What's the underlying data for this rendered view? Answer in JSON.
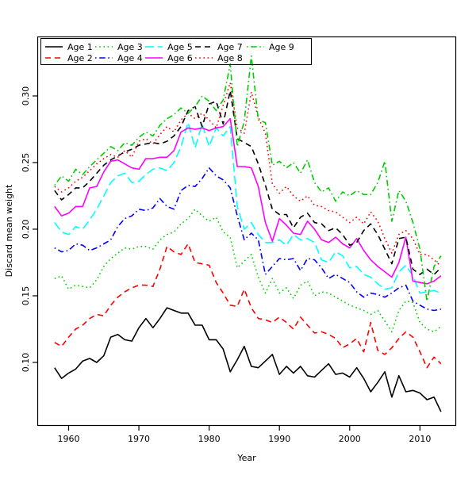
{
  "figure": {
    "background": "#ffffff",
    "border_color": "#000000"
  },
  "chart_data": {
    "type": "line",
    "title": "",
    "xlabel": "Year",
    "ylabel": "Discard mean weight",
    "x_start": 1958,
    "x_end": 2013,
    "x_ticks": [
      1960,
      1970,
      1980,
      1990,
      2000,
      2010
    ],
    "y_ticks": [
      0.1,
      0.15,
      0.2,
      0.25,
      0.3
    ],
    "y_tick_labels": [
      "0.10",
      "0.15",
      "0.20",
      "0.25",
      "0.30"
    ],
    "ylim": [
      0.052,
      0.345
    ],
    "grid": false,
    "legend_position": "top-left",
    "legend_columns": 5,
    "series": [
      {
        "name": "Age 1",
        "color": "#000000",
        "line_style": "solid",
        "values": [
          0.096,
          0.088,
          0.092,
          0.095,
          0.101,
          0.103,
          0.1,
          0.105,
          0.119,
          0.121,
          0.117,
          0.116,
          0.126,
          0.133,
          0.126,
          0.133,
          0.141,
          0.139,
          0.137,
          0.137,
          0.128,
          0.128,
          0.117,
          0.117,
          0.11,
          0.093,
          0.102,
          0.112,
          0.097,
          0.096,
          0.101,
          0.106,
          0.091,
          0.097,
          0.092,
          0.097,
          0.09,
          0.089,
          0.094,
          0.099,
          0.091,
          0.092,
          0.089,
          0.096,
          0.088,
          0.078,
          0.085,
          0.093,
          0.074,
          0.09,
          0.078,
          0.079,
          0.077,
          0.072,
          0.074,
          0.063
        ]
      },
      {
        "name": "Age 2",
        "color": "#FF0000",
        "line_style": "dashed",
        "values": [
          0.115,
          0.112,
          0.119,
          0.125,
          0.128,
          0.133,
          0.136,
          0.135,
          0.143,
          0.149,
          0.153,
          0.156,
          0.158,
          0.158,
          0.157,
          0.17,
          0.187,
          0.183,
          0.181,
          0.189,
          0.175,
          0.174,
          0.173,
          0.16,
          0.152,
          0.143,
          0.142,
          0.155,
          0.141,
          0.133,
          0.132,
          0.13,
          0.134,
          0.13,
          0.125,
          0.134,
          0.128,
          0.122,
          0.123,
          0.121,
          0.118,
          0.111,
          0.114,
          0.118,
          0.108,
          0.13,
          0.109,
          0.106,
          0.111,
          0.118,
          0.123,
          0.119,
          0.108,
          0.096,
          0.104,
          0.099
        ]
      },
      {
        "name": "Age 3",
        "color": "#00CD00",
        "line_style": "dotted",
        "values": [
          0.163,
          0.165,
          0.155,
          0.158,
          0.157,
          0.156,
          0.162,
          0.172,
          0.178,
          0.182,
          0.186,
          0.185,
          0.187,
          0.187,
          0.185,
          0.192,
          0.196,
          0.198,
          0.204,
          0.208,
          0.215,
          0.21,
          0.206,
          0.209,
          0.198,
          0.194,
          0.171,
          0.176,
          0.181,
          0.164,
          0.152,
          0.163,
          0.152,
          0.156,
          0.148,
          0.158,
          0.161,
          0.15,
          0.153,
          0.152,
          0.149,
          0.146,
          0.143,
          0.141,
          0.139,
          0.136,
          0.139,
          0.131,
          0.123,
          0.139,
          0.146,
          0.145,
          0.13,
          0.125,
          0.123,
          0.127
        ]
      },
      {
        "name": "Age 4",
        "color": "#0000FF",
        "line_style": "dotdash",
        "values": [
          0.186,
          0.183,
          0.184,
          0.189,
          0.188,
          0.184,
          0.186,
          0.189,
          0.192,
          0.202,
          0.208,
          0.21,
          0.215,
          0.214,
          0.216,
          0.223,
          0.217,
          0.215,
          0.229,
          0.233,
          0.232,
          0.238,
          0.246,
          0.24,
          0.237,
          0.231,
          0.21,
          0.192,
          0.197,
          0.192,
          0.166,
          0.172,
          0.178,
          0.177,
          0.178,
          0.169,
          0.178,
          0.177,
          0.171,
          0.163,
          0.166,
          0.163,
          0.16,
          0.153,
          0.149,
          0.152,
          0.151,
          0.149,
          0.152,
          0.156,
          0.158,
          0.146,
          0.143,
          0.14,
          0.139,
          0.14
        ]
      },
      {
        "name": "Age 5",
        "color": "#00FFFF",
        "line_style": "longdash",
        "values": [
          0.205,
          0.198,
          0.196,
          0.202,
          0.2,
          0.207,
          0.215,
          0.225,
          0.235,
          0.24,
          0.242,
          0.235,
          0.236,
          0.241,
          0.245,
          0.246,
          0.244,
          0.25,
          0.262,
          0.28,
          0.261,
          0.279,
          0.262,
          0.276,
          0.27,
          0.277,
          0.217,
          0.2,
          0.205,
          0.196,
          0.19,
          0.19,
          0.192,
          0.188,
          0.196,
          0.192,
          0.193,
          0.19,
          0.177,
          0.175,
          0.183,
          0.18,
          0.171,
          0.172,
          0.166,
          0.164,
          0.159,
          0.155,
          0.156,
          0.168,
          0.173,
          0.165,
          0.152,
          0.153,
          0.154,
          0.152
        ]
      },
      {
        "name": "Age 6",
        "color": "#FF00FF",
        "line_style": "solid",
        "values": [
          0.217,
          0.21,
          0.212,
          0.217,
          0.217,
          0.231,
          0.232,
          0.243,
          0.251,
          0.252,
          0.249,
          0.246,
          0.245,
          0.253,
          0.253,
          0.254,
          0.254,
          0.259,
          0.273,
          0.276,
          0.275,
          0.276,
          0.274,
          0.276,
          0.277,
          0.283,
          0.247,
          0.247,
          0.246,
          0.232,
          0.205,
          0.191,
          0.208,
          0.203,
          0.197,
          0.196,
          0.206,
          0.2,
          0.192,
          0.19,
          0.194,
          0.189,
          0.186,
          0.193,
          0.184,
          0.177,
          0.172,
          0.168,
          0.164,
          0.175,
          0.194,
          0.161,
          0.16,
          0.159,
          0.161,
          0.165
        ]
      },
      {
        "name": "Age 7",
        "color": "#000000",
        "line_style": "dashed",
        "values": [
          0.229,
          0.222,
          0.226,
          0.231,
          0.231,
          0.236,
          0.242,
          0.248,
          0.252,
          0.255,
          0.258,
          0.26,
          0.263,
          0.264,
          0.265,
          0.264,
          0.266,
          0.27,
          0.277,
          0.289,
          0.292,
          0.277,
          0.294,
          0.296,
          0.279,
          0.304,
          0.268,
          0.265,
          0.262,
          0.249,
          0.233,
          0.215,
          0.211,
          0.211,
          0.201,
          0.209,
          0.212,
          0.205,
          0.204,
          0.199,
          0.201,
          0.196,
          0.188,
          0.19,
          0.199,
          0.204,
          0.196,
          0.185,
          0.174,
          0.193,
          0.194,
          0.17,
          0.166,
          0.17,
          0.166,
          0.171
        ]
      },
      {
        "name": "Age 8",
        "color": "#FF0000",
        "line_style": "dotted",
        "values": [
          0.232,
          0.228,
          0.231,
          0.236,
          0.239,
          0.244,
          0.249,
          0.253,
          0.256,
          0.254,
          0.259,
          0.254,
          0.266,
          0.268,
          0.264,
          0.271,
          0.277,
          0.273,
          0.282,
          0.287,
          0.283,
          0.287,
          0.282,
          0.276,
          0.293,
          0.31,
          0.276,
          0.272,
          0.303,
          0.284,
          0.272,
          0.234,
          0.227,
          0.232,
          0.225,
          0.221,
          0.225,
          0.218,
          0.217,
          0.214,
          0.213,
          0.209,
          0.205,
          0.209,
          0.204,
          0.213,
          0.206,
          0.193,
          0.182,
          0.196,
          0.199,
          0.193,
          0.181,
          0.181,
          0.177,
          0.172
        ]
      },
      {
        "name": "Age 9",
        "color": "#00CD00",
        "line_style": "dotdash",
        "values": [
          0.233,
          0.24,
          0.236,
          0.245,
          0.241,
          0.247,
          0.252,
          0.257,
          0.262,
          0.259,
          0.265,
          0.263,
          0.269,
          0.273,
          0.27,
          0.278,
          0.283,
          0.286,
          0.291,
          0.287,
          0.292,
          0.3,
          0.296,
          0.289,
          0.297,
          0.324,
          0.262,
          0.281,
          0.33,
          0.282,
          0.28,
          0.248,
          0.251,
          0.246,
          0.25,
          0.242,
          0.252,
          0.235,
          0.228,
          0.231,
          0.221,
          0.228,
          0.225,
          0.229,
          0.226,
          0.226,
          0.235,
          0.251,
          0.206,
          0.229,
          0.221,
          0.205,
          0.185,
          0.146,
          0.172,
          0.18
        ]
      }
    ]
  }
}
